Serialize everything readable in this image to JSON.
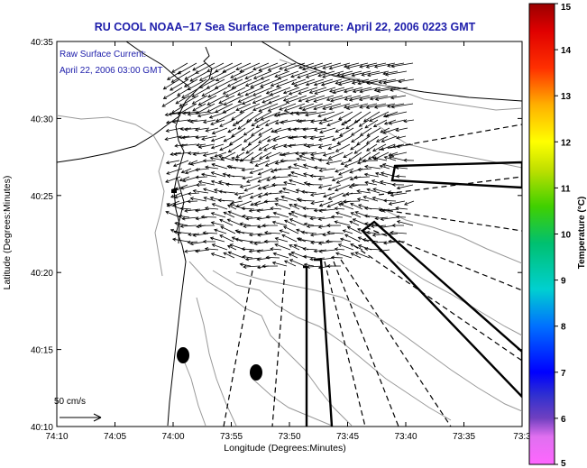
{
  "title": "RU COOL  NOAA−17  Sea Surface Temperature:  April 22, 2006 0223 GMT",
  "legend": {
    "line1": "Raw Surface Current:",
    "line2": "April 22, 2006 03:00 GMT"
  },
  "scale": {
    "label": "50 cm/s"
  },
  "axes": {
    "xlabel": "Longitude (Degrees:Minutes)",
    "ylabel": "Latitude (Degrees:Minutes)",
    "xticks": [
      "74:10",
      "74:05",
      "74:00",
      "73:55",
      "73:50",
      "73:45",
      "73:40",
      "73:35",
      "73:3"
    ],
    "yticks": [
      "40:35",
      "40:30",
      "40:25",
      "40:20",
      "40:15",
      "40:10"
    ]
  },
  "colorbar": {
    "label": "Temperature (°C)",
    "ticks": [
      "15",
      "14",
      "13",
      "12",
      "11",
      "10",
      "9",
      "8",
      "7",
      "6",
      "5"
    ],
    "range": [
      5,
      15
    ]
  }
}
